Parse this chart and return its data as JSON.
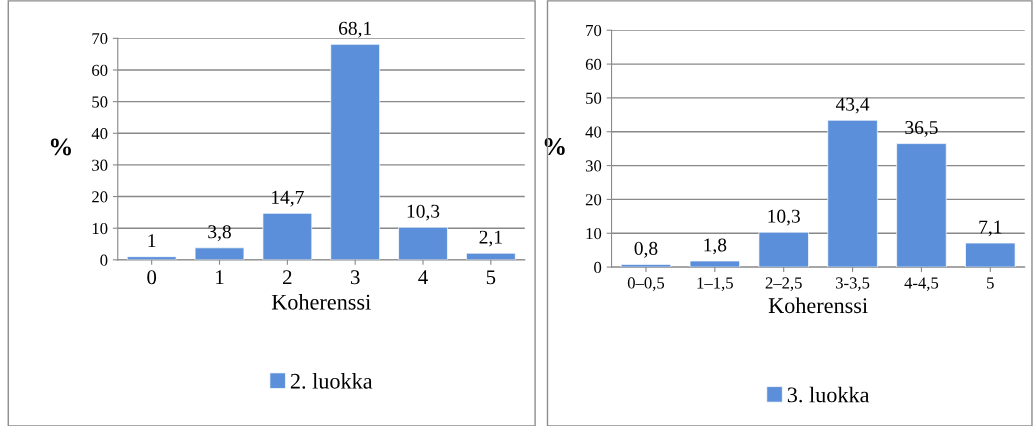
{
  "chart_data": [
    {
      "type": "bar",
      "xlabel": "Koherenssi",
      "ylabel": "%",
      "categories": [
        "0",
        "1",
        "2",
        "3",
        "4",
        "5"
      ],
      "series": [
        {
          "name": "2. luokka",
          "color": "#5b8fd9",
          "values": [
            1,
            3.8,
            14.7,
            68.1,
            10.3,
            2.1
          ],
          "value_labels": [
            "1",
            "3,8",
            "14,7",
            "68,1",
            "10,3",
            "2,1"
          ]
        }
      ],
      "ylim": [
        0,
        70
      ],
      "yticks": [
        0,
        10,
        20,
        30,
        40,
        50,
        60,
        70
      ],
      "grid": "y",
      "legend": "bottom"
    },
    {
      "type": "bar",
      "xlabel": "Koherenssi",
      "ylabel": "%",
      "categories": [
        "0–0,5",
        "1–1,5",
        "2–2,5",
        "3-3,5",
        "4-4,5",
        "5"
      ],
      "series": [
        {
          "name": "3. luokka",
          "color": "#5b8fd9",
          "values": [
            0.8,
            1.8,
            10.3,
            43.4,
            36.5,
            7.1
          ],
          "value_labels": [
            "0,8",
            "1,8",
            "10,3",
            "43,4",
            "36,5",
            "7,1"
          ]
        }
      ],
      "ylim": [
        0,
        70
      ],
      "yticks": [
        0,
        10,
        20,
        30,
        40,
        50,
        60,
        70
      ],
      "grid": "y",
      "legend": "bottom"
    }
  ]
}
